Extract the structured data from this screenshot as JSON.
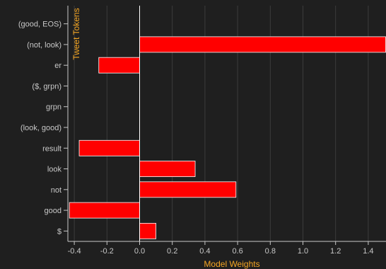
{
  "chart_data": {
    "type": "bar",
    "orientation": "horizontal",
    "xlabel": "Model Weights",
    "ylabel": "Tweet Tokens",
    "xlim": [
      -0.43,
      1.51
    ],
    "x_ticks": [
      -0.4,
      -0.2,
      0.0,
      0.2,
      0.4,
      0.6,
      0.8,
      1.0,
      1.2,
      1.4
    ],
    "x_tick_labels": [
      "-0.4",
      "-0.2",
      "0.0",
      "0.2",
      "0.4",
      "0.6",
      "0.8",
      "1.0",
      "1.2",
      "1.4"
    ],
    "grid": "vertical",
    "categories": [
      "(good, EOS)",
      "(not, look)",
      "er",
      "($, grpn)",
      "grpn",
      "(look, good)",
      "result",
      "look",
      "not",
      "good",
      "$"
    ],
    "values": [
      0.0,
      1.51,
      -0.25,
      0.0,
      0.0,
      0.0,
      -0.37,
      0.34,
      0.59,
      -0.43,
      0.1
    ],
    "colors": {
      "bar": "#ff0000",
      "bar_stroke": "#ffffff",
      "background": "#1f1f1f",
      "grid": "#3c3c3c",
      "axis": "#c8c8c8",
      "title": "#f5a623"
    }
  }
}
